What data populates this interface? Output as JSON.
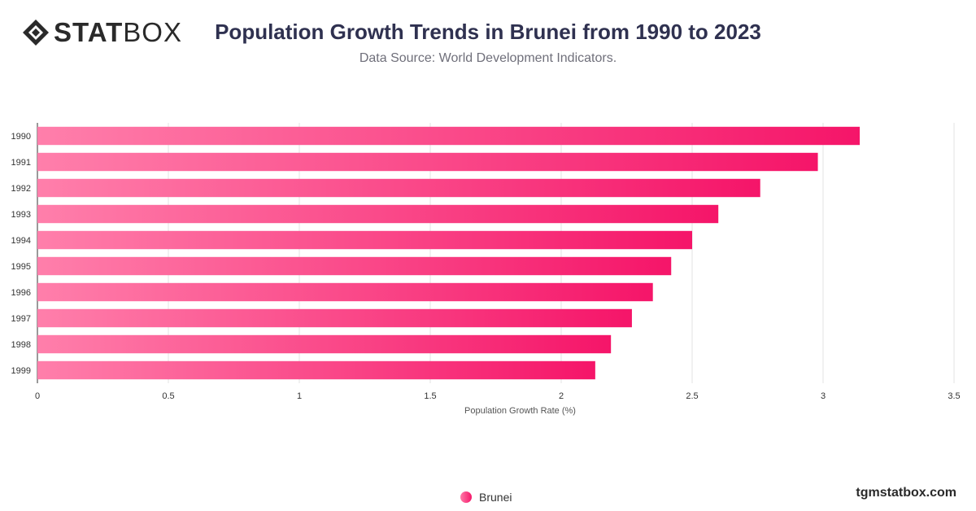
{
  "brand": {
    "logo_bold": "STAT",
    "logo_light": "BOX",
    "site": "tgmstatbox.com"
  },
  "header": {
    "title": "Population Growth Trends in Brunei from 1990 to 2023",
    "subtitle": "Data Source: World Development Indicators."
  },
  "legend": {
    "label": "Brunei"
  },
  "colors": {
    "bar_start": "#ff7fab",
    "bar_end": "#f51569",
    "grid": "#e3e3e3",
    "axis": "#333333"
  },
  "chart_data": {
    "type": "bar",
    "orientation": "horizontal",
    "title": "Population Growth Trends in Brunei from 1990 to 2023",
    "subtitle": "Data Source: World Development Indicators.",
    "xlabel": "Population Growth Rate (%)",
    "ylabel": "",
    "categories": [
      "1990",
      "1991",
      "1992",
      "1993",
      "1994",
      "1995",
      "1996",
      "1997",
      "1998",
      "1999"
    ],
    "series": [
      {
        "name": "Brunei",
        "values": [
          3.14,
          2.98,
          2.76,
          2.6,
          2.5,
          2.42,
          2.35,
          2.27,
          2.19,
          2.13
        ]
      }
    ],
    "xlim": [
      0,
      3.5
    ],
    "xticks": [
      0,
      0.5,
      1,
      1.5,
      2,
      2.5,
      3,
      3.5
    ],
    "xtick_labels": [
      "0",
      "0.5",
      "1",
      "1.5",
      "2",
      "2.5",
      "3",
      "3.5"
    ],
    "grid": true,
    "legend_position": "bottom-center"
  }
}
